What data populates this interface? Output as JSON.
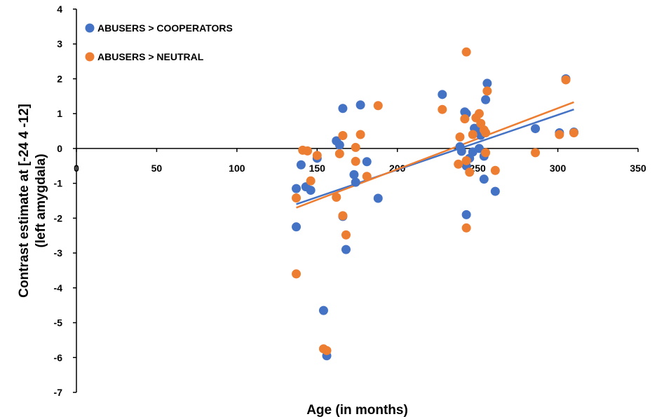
{
  "chart_data": {
    "type": "scatter",
    "title": "",
    "xlabel": "Age (in months)",
    "ylabel_lines": [
      "Contrast estimate at [-24 4 -12]",
      "(left amygdala)"
    ],
    "xlim": [
      0,
      350
    ],
    "ylim": [
      -7,
      4
    ],
    "x_ticks": [
      0,
      50,
      100,
      150,
      200,
      250,
      300,
      350
    ],
    "y_ticks": [
      4,
      3,
      2,
      1,
      0,
      -1,
      -2,
      -3,
      -4,
      -5,
      -6,
      -7
    ],
    "grid": false,
    "legend": "top-left",
    "series": [
      {
        "name": "ABUSERS > COOPERATORS",
        "color": "#4472C4",
        "points": [
          [
            137,
            -1.15
          ],
          [
            137,
            -2.25
          ],
          [
            140,
            -0.47
          ],
          [
            143,
            -1.1
          ],
          [
            146,
            -1.2
          ],
          [
            150,
            -0.28
          ],
          [
            154,
            -4.65
          ],
          [
            156,
            -5.95
          ],
          [
            162,
            0.22
          ],
          [
            164,
            0.1
          ],
          [
            166,
            1.15
          ],
          [
            166,
            -1.95
          ],
          [
            168,
            -2.9
          ],
          [
            173,
            -0.75
          ],
          [
            174,
            -0.97
          ],
          [
            177,
            1.25
          ],
          [
            181,
            -0.38
          ],
          [
            188,
            -1.43
          ],
          [
            228,
            1.55
          ],
          [
            239,
            0.05
          ],
          [
            240,
            -0.08
          ],
          [
            242,
            1.05
          ],
          [
            243,
            1.0
          ],
          [
            243,
            -1.9
          ],
          [
            243,
            -0.5
          ],
          [
            245,
            -0.28
          ],
          [
            247,
            -0.1
          ],
          [
            248,
            0.58
          ],
          [
            250,
            0.55
          ],
          [
            251,
            0.0
          ],
          [
            252,
            0.38
          ],
          [
            254,
            -0.22
          ],
          [
            254,
            -0.88
          ],
          [
            255,
            1.4
          ],
          [
            256,
            1.87
          ],
          [
            261,
            -1.23
          ],
          [
            286,
            0.57
          ],
          [
            301,
            0.45
          ],
          [
            305,
            2.0
          ],
          [
            310,
            0.47
          ]
        ],
        "trend": [
          [
            137,
            -1.6
          ],
          [
            310,
            1.12
          ]
        ]
      },
      {
        "name": "ABUSERS > NEUTRAL",
        "color": "#ED7D31",
        "points": [
          [
            137,
            -1.42
          ],
          [
            137,
            -3.6
          ],
          [
            141,
            -0.05
          ],
          [
            144,
            -0.07
          ],
          [
            146,
            -0.93
          ],
          [
            150,
            -0.2
          ],
          [
            154,
            -5.75
          ],
          [
            156,
            -5.8
          ],
          [
            162,
            -1.4
          ],
          [
            164,
            -0.15
          ],
          [
            166,
            0.37
          ],
          [
            166,
            -1.93
          ],
          [
            168,
            -2.48
          ],
          [
            174,
            0.03
          ],
          [
            174,
            -0.37
          ],
          [
            177,
            0.4
          ],
          [
            181,
            -0.8
          ],
          [
            188,
            1.23
          ],
          [
            228,
            1.12
          ],
          [
            238,
            -0.45
          ],
          [
            239,
            0.33
          ],
          [
            242,
            0.85
          ],
          [
            243,
            2.77
          ],
          [
            243,
            -2.28
          ],
          [
            243,
            -0.35
          ],
          [
            245,
            -0.68
          ],
          [
            247,
            0.4
          ],
          [
            249,
            0.88
          ],
          [
            251,
            1.0
          ],
          [
            252,
            0.72
          ],
          [
            254,
            0.53
          ],
          [
            255,
            0.45
          ],
          [
            255,
            -0.12
          ],
          [
            256,
            1.65
          ],
          [
            261,
            -0.63
          ],
          [
            286,
            -0.12
          ],
          [
            301,
            0.4
          ],
          [
            305,
            1.97
          ],
          [
            310,
            0.45
          ]
        ],
        "trend": [
          [
            137,
            -1.7
          ],
          [
            310,
            1.33
          ]
        ]
      }
    ]
  }
}
